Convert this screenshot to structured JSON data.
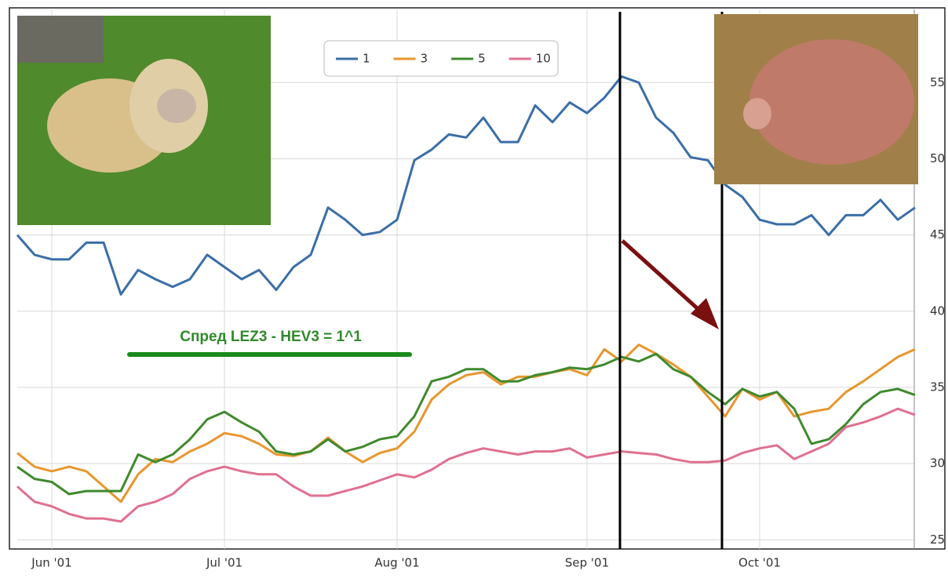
{
  "chart_data": {
    "type": "line",
    "categories": [
      null,
      null,
      "Jun '01",
      null,
      null,
      null,
      null,
      null,
      null,
      null,
      null,
      null,
      "Jul '01",
      null,
      null,
      null,
      null,
      null,
      null,
      null,
      null,
      null,
      "Aug '01",
      null,
      null,
      null,
      null,
      null,
      null,
      null,
      null,
      null,
      null,
      "Sep '01",
      null,
      null,
      null,
      null,
      null,
      null,
      null,
      null,
      null,
      "Oct '01",
      null,
      null,
      null,
      null,
      null,
      null,
      null,
      null,
      null
    ],
    "series": [
      {
        "name": "1",
        "color": "#3a6ea8",
        "values": [
          45.0,
          43.7,
          43.4,
          43.4,
          44.5,
          44.5,
          41.1,
          42.7,
          42.1,
          41.6,
          42.1,
          43.7,
          42.9,
          42.1,
          42.7,
          41.4,
          42.9,
          43.7,
          46.8,
          46.0,
          45.0,
          45.2,
          46.0,
          49.9,
          50.6,
          51.6,
          51.4,
          52.7,
          51.1,
          51.1,
          53.5,
          52.4,
          53.7,
          53.0,
          54.0,
          55.4,
          55.0,
          52.7,
          51.7,
          50.1,
          49.9,
          48.3,
          47.5,
          46.0,
          45.7,
          45.7,
          46.3,
          45.0,
          46.3,
          46.3,
          47.3,
          46.0,
          46.8
        ]
      },
      {
        "name": "3",
        "color": "#e8962e",
        "values": [
          30.7,
          29.8,
          29.5,
          29.8,
          29.5,
          28.5,
          27.5,
          29.3,
          30.3,
          30.1,
          30.8,
          31.3,
          32.0,
          31.8,
          31.3,
          30.6,
          30.5,
          30.8,
          31.7,
          30.8,
          30.1,
          30.7,
          31.0,
          32.1,
          34.2,
          35.2,
          35.8,
          36.0,
          35.2,
          35.7,
          35.7,
          36.0,
          36.2,
          35.8,
          37.5,
          36.7,
          37.8,
          37.2,
          36.5,
          35.7,
          34.4,
          33.1,
          34.9,
          34.2,
          34.7,
          33.1,
          33.4,
          33.6,
          34.7,
          35.4,
          36.2,
          37.0,
          37.5
        ]
      },
      {
        "name": "5",
        "color": "#3f8a2e",
        "values": [
          29.8,
          29.0,
          28.8,
          28.0,
          28.2,
          28.2,
          28.2,
          30.6,
          30.1,
          30.6,
          31.6,
          32.9,
          33.4,
          32.7,
          32.1,
          30.8,
          30.6,
          30.8,
          31.6,
          30.8,
          31.1,
          31.6,
          31.8,
          33.1,
          35.4,
          35.7,
          36.2,
          36.2,
          35.4,
          35.4,
          35.8,
          36.0,
          36.3,
          36.2,
          36.5,
          37.0,
          36.7,
          37.2,
          36.2,
          35.7,
          34.7,
          33.9,
          34.9,
          34.4,
          34.7,
          33.6,
          31.3,
          31.6,
          32.6,
          33.9,
          34.7,
          34.9,
          34.5
        ]
      },
      {
        "name": "10",
        "color": "#e07090",
        "values": [
          28.5,
          27.5,
          27.2,
          26.7,
          26.4,
          26.4,
          26.2,
          27.2,
          27.5,
          28.0,
          29.0,
          29.5,
          29.8,
          29.5,
          29.3,
          29.3,
          28.5,
          27.9,
          27.9,
          28.2,
          28.5,
          28.9,
          29.3,
          29.1,
          29.6,
          30.3,
          30.7,
          31.0,
          30.8,
          30.6,
          30.8,
          30.8,
          31.0,
          30.4,
          30.6,
          30.8,
          30.7,
          30.6,
          30.3,
          30.1,
          30.1,
          30.2,
          30.7,
          31.0,
          31.2,
          30.3,
          30.8,
          31.3,
          32.4,
          32.7,
          33.1,
          33.6,
          33.2
        ]
      }
    ],
    "ylim": [
      24.4,
      59.8
    ],
    "yticks": [
      25,
      30,
      35,
      40,
      45,
      50,
      55
    ],
    "grid": true,
    "legend": "top",
    "annotation": "Спред LEZ3 - HEV3 = 1^1"
  }
}
